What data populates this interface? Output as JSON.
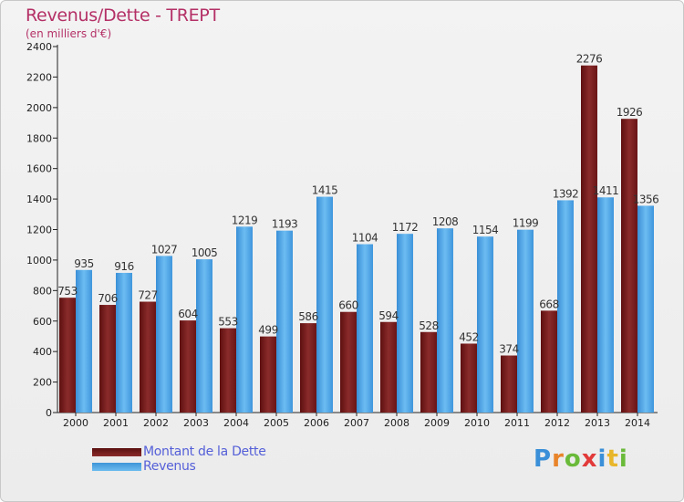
{
  "header": {
    "title": "Revenus/Dette - TREPT",
    "subtitle": "(en milliers d'€)"
  },
  "chart_data": {
    "type": "bar",
    "title": "Revenus/Dette - TREPT",
    "subtitle": "(en milliers d'€)",
    "categories": [
      "2000",
      "2001",
      "2002",
      "2003",
      "2004",
      "2005",
      "2006",
      "2007",
      "2008",
      "2009",
      "2010",
      "2011",
      "2012",
      "2013",
      "2014"
    ],
    "series": [
      {
        "name": "Montant de la Dette",
        "color": "#7a1a1a",
        "values": [
          753,
          706,
          727,
          604,
          553,
          499,
          586,
          660,
          594,
          528,
          452,
          374,
          668,
          2276,
          1926
        ]
      },
      {
        "name": "Revenus",
        "color": "#4aa3e6",
        "values": [
          935,
          916,
          1027,
          1005,
          1219,
          1193,
          1415,
          1104,
          1172,
          1208,
          1154,
          1199,
          1392,
          1411,
          1356
        ]
      }
    ],
    "y_ticks": [
      0,
      200,
      400,
      600,
      800,
      1000,
      1200,
      1400,
      1600,
      1800,
      2000,
      2200,
      2400
    ],
    "ylim": [
      0,
      2400
    ],
    "grid": false,
    "legend_position": "bottom-left"
  },
  "legend": {
    "debt_label": "Montant de la Dette",
    "revenue_label": "Revenus"
  },
  "logo": {
    "letters": [
      "P",
      "r",
      "o",
      "x",
      "i",
      "t",
      "i"
    ],
    "colors": [
      "#3a8fd8",
      "#e8842a",
      "#6aba3a",
      "#e23a3a",
      "#3a8fd8",
      "#e8b62a",
      "#6aba3a"
    ]
  }
}
